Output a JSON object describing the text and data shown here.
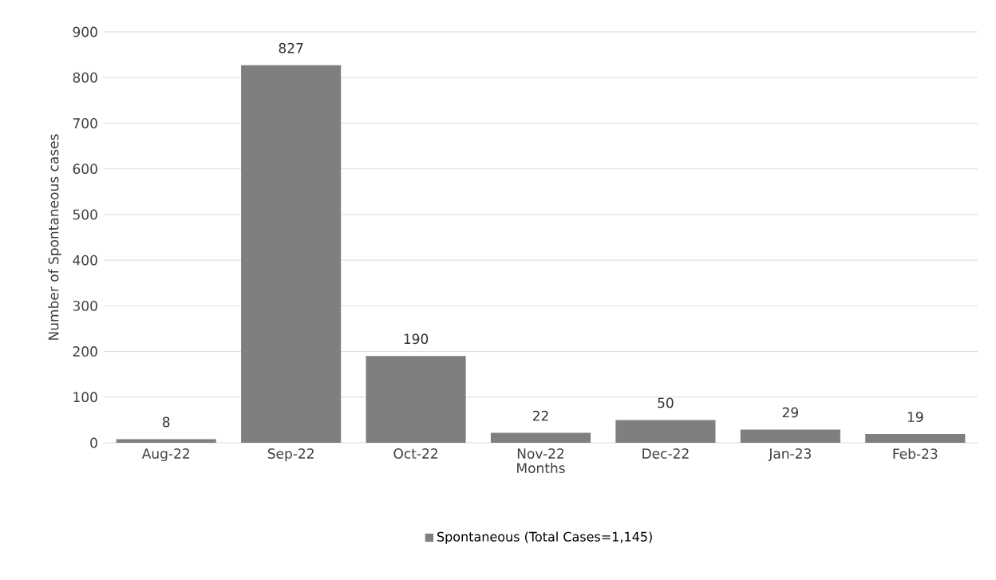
{
  "chart_data": {
    "type": "bar",
    "xlabel": "Months",
    "ylabel": "Number of Spontaneous cases",
    "categories": [
      "Aug-22",
      "Sep-22",
      "Oct-22",
      "Nov-22",
      "Dec-22",
      "Jan-23",
      "Feb-23"
    ],
    "series": [
      {
        "name": "Spontaneous (Total Cases=1,145)",
        "color": "#7f7f7f",
        "values": [
          8,
          827,
          190,
          22,
          50,
          29,
          19
        ]
      }
    ],
    "ylim": [
      0,
      900
    ],
    "yticks": [
      0,
      100,
      200,
      300,
      400,
      500,
      600,
      700,
      800,
      900
    ],
    "grid": "y",
    "data_labels": true,
    "legend": "bottom"
  }
}
